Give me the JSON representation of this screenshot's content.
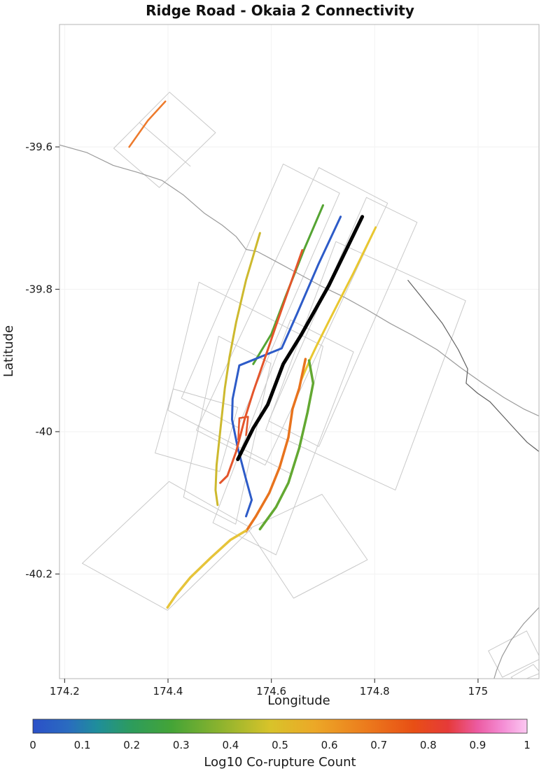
{
  "chart_data": {
    "type": "line",
    "title": "Ridge Road - Okaia 2 Connectivity",
    "xlabel": "Longitude",
    "ylabel": "Latitude",
    "xlim": [
      174.19,
      175.118
    ],
    "ylim": [
      -40.347,
      -39.428
    ],
    "grid": "off",
    "xticks": {
      "values": [
        174.2,
        174.4,
        174.6,
        174.8,
        175.0
      ],
      "labels": [
        "174.2",
        "174.4",
        "174.6",
        "174.8",
        "175"
      ]
    },
    "yticks": {
      "values": [
        -39.6,
        -39.8,
        -40.0,
        -40.2
      ],
      "labels": [
        "-39.6",
        "-39.8",
        "-40",
        "-40.2"
      ]
    },
    "colorbar": {
      "label": "Log10 Co-rupture Count",
      "min": 0,
      "max": 1,
      "tick_labels": [
        "0",
        "0.1",
        "0.2",
        "0.3",
        "0.4",
        "0.5",
        "0.6",
        "0.7",
        "0.8",
        "0.9",
        "1"
      ],
      "stops": [
        {
          "t": 0.0,
          "color": "#2b50c8"
        },
        {
          "t": 0.07,
          "color": "#2a6bc0"
        },
        {
          "t": 0.13,
          "color": "#1f8e9b"
        },
        {
          "t": 0.2,
          "color": "#2d9c5c"
        },
        {
          "t": 0.28,
          "color": "#44a437"
        },
        {
          "t": 0.38,
          "color": "#8db32e"
        },
        {
          "t": 0.48,
          "color": "#d8c32a"
        },
        {
          "t": 0.57,
          "color": "#eca827"
        },
        {
          "t": 0.67,
          "color": "#ec7d1d"
        },
        {
          "t": 0.77,
          "color": "#e84f15"
        },
        {
          "t": 0.84,
          "color": "#e63a39"
        },
        {
          "t": 0.9,
          "color": "#ec5ba2"
        },
        {
          "t": 0.95,
          "color": "#f48cd4"
        },
        {
          "t": 1.0,
          "color": "#fcc8f2"
        }
      ]
    },
    "traces": [
      {
        "name": "fault-trace-orange-northwest",
        "color": "#ed7a2c",
        "width": 2.5,
        "points": [
          [
            174.395,
            -39.536
          ],
          [
            174.361,
            -39.563
          ],
          [
            174.325,
            -39.6
          ]
        ]
      },
      {
        "name": "fault-trace-yellow-east",
        "color": "#e9c730",
        "width": 3,
        "points": [
          [
            174.802,
            -39.713
          ],
          [
            174.759,
            -39.777
          ],
          [
            174.714,
            -39.841
          ],
          [
            174.687,
            -39.88
          ],
          [
            174.676,
            -39.897
          ],
          [
            174.657,
            -39.929
          ]
        ]
      },
      {
        "name": "fault-trace-green-north",
        "color": "#55a433",
        "width": 3,
        "points": [
          [
            174.7,
            -39.682
          ],
          [
            174.664,
            -39.743
          ],
          [
            174.627,
            -39.811
          ],
          [
            174.6,
            -39.863
          ],
          [
            174.565,
            -39.905
          ]
        ]
      },
      {
        "name": "fault-trace-blue",
        "color": "#2d5bc8",
        "width": 3,
        "points": [
          [
            174.734,
            -39.698
          ],
          [
            174.691,
            -39.765
          ],
          [
            174.65,
            -39.834
          ],
          [
            174.62,
            -39.883
          ],
          [
            174.562,
            -39.9
          ],
          [
            174.538,
            -39.907
          ],
          [
            174.525,
            -39.954
          ],
          [
            174.524,
            -39.983
          ],
          [
            174.535,
            -40.023
          ],
          [
            174.551,
            -40.067
          ],
          [
            174.562,
            -40.096
          ],
          [
            174.551,
            -40.119
          ]
        ]
      },
      {
        "name": "fault-trace-red-central",
        "color": "#e4552b",
        "width": 3,
        "points": [
          [
            174.66,
            -39.745
          ],
          [
            174.633,
            -39.801
          ],
          [
            174.609,
            -39.851
          ],
          [
            174.586,
            -39.9
          ],
          [
            174.565,
            -39.944
          ],
          [
            174.548,
            -39.983
          ],
          [
            174.532,
            -40.028
          ],
          [
            174.515,
            -40.062
          ],
          [
            174.501,
            -40.072
          ]
        ]
      },
      {
        "name": "fault-trace-olive-west",
        "color": "#cdb92e",
        "width": 3,
        "points": [
          [
            174.578,
            -39.721
          ],
          [
            174.551,
            -39.787
          ],
          [
            174.532,
            -39.846
          ],
          [
            174.519,
            -39.895
          ],
          [
            174.51,
            -39.939
          ],
          [
            174.502,
            -39.993
          ],
          [
            174.494,
            -40.047
          ],
          [
            174.492,
            -40.082
          ],
          [
            174.496,
            -40.103
          ]
        ]
      },
      {
        "name": "fault-trace-red-short",
        "color": "#e4552b",
        "width": 2.5,
        "points": [
          [
            174.536,
            -40.011
          ],
          [
            174.538,
            -39.981
          ],
          [
            174.555,
            -39.979
          ],
          [
            174.551,
            -40.005
          ]
        ]
      },
      {
        "name": "fault-trace-green-south",
        "color": "#63a832",
        "width": 3.5,
        "points": [
          [
            174.673,
            -39.9
          ],
          [
            174.681,
            -39.932
          ],
          [
            174.67,
            -39.973
          ],
          [
            174.654,
            -40.023
          ],
          [
            174.633,
            -40.072
          ],
          [
            174.609,
            -40.106
          ],
          [
            174.586,
            -40.129
          ],
          [
            174.578,
            -40.137
          ]
        ]
      },
      {
        "name": "fault-trace-orange-south",
        "color": "#e8731d",
        "width": 3.5,
        "points": [
          [
            174.666,
            -39.898
          ],
          [
            174.654,
            -39.939
          ],
          [
            174.641,
            -39.968
          ],
          [
            174.633,
            -40.008
          ],
          [
            174.616,
            -40.05
          ],
          [
            174.596,
            -40.086
          ],
          [
            174.57,
            -40.119
          ],
          [
            174.551,
            -40.14
          ]
        ]
      },
      {
        "name": "fault-trace-gold-southwest",
        "color": "#e6c43a",
        "width": 3.5,
        "points": [
          [
            174.551,
            -40.139
          ],
          [
            174.521,
            -40.152
          ],
          [
            174.483,
            -40.177
          ],
          [
            174.443,
            -40.205
          ],
          [
            174.416,
            -40.229
          ],
          [
            174.399,
            -40.247
          ]
        ]
      },
      {
        "name": "source-fault-ridge-road-okaia-2",
        "color": "#000000",
        "width": 5,
        "points": [
          [
            174.776,
            -39.698
          ],
          [
            174.711,
            -39.795
          ],
          [
            174.657,
            -39.865
          ],
          [
            174.623,
            -39.905
          ],
          [
            174.593,
            -39.962
          ],
          [
            174.565,
            -39.995
          ],
          [
            174.535,
            -40.039
          ]
        ]
      }
    ],
    "section_outlines": [
      [
        [
          174.295,
          -39.602
        ],
        [
          174.403,
          -39.523
        ],
        [
          174.492,
          -39.58
        ],
        [
          174.383,
          -39.657
        ]
      ],
      [
        [
          174.345,
          -39.566
        ],
        [
          174.443,
          -39.627
        ]
      ],
      [
        [
          174.692,
          -39.629
        ],
        [
          174.825,
          -39.679
        ],
        [
          174.588,
          -40.047
        ],
        [
          174.455,
          -39.998
        ]
      ],
      [
        [
          174.623,
          -39.624
        ],
        [
          174.732,
          -39.665
        ],
        [
          174.535,
          -39.994
        ],
        [
          174.426,
          -39.953
        ]
      ],
      [
        [
          174.784,
          -39.671
        ],
        [
          174.882,
          -39.706
        ],
        [
          174.692,
          -40.021
        ],
        [
          174.595,
          -39.985
        ]
      ],
      [
        [
          174.637,
          -39.843
        ],
        [
          174.759,
          -39.888
        ],
        [
          174.609,
          -40.173
        ],
        [
          174.487,
          -40.128
        ]
      ],
      [
        [
          174.498,
          -39.866
        ],
        [
          174.599,
          -39.904
        ],
        [
          174.531,
          -40.13
        ],
        [
          174.43,
          -40.092
        ]
      ],
      [
        [
          174.725,
          -39.733
        ],
        [
          174.976,
          -39.816
        ],
        [
          174.84,
          -40.082
        ],
        [
          174.589,
          -39.998
        ]
      ],
      [
        [
          174.46,
          -39.79
        ],
        [
          174.7,
          -39.88
        ],
        [
          174.64,
          -40.06
        ],
        [
          174.4,
          -39.97
        ]
      ],
      [
        [
          174.375,
          -40.03
        ],
        [
          174.41,
          -39.94
        ],
        [
          174.535,
          -39.966
        ],
        [
          174.5,
          -40.056
        ]
      ],
      [
        [
          174.234,
          -40.185
        ],
        [
          174.402,
          -40.07
        ],
        [
          174.562,
          -40.136
        ],
        [
          174.399,
          -40.251
        ]
      ],
      [
        [
          174.555,
          -40.137
        ],
        [
          174.698,
          -40.088
        ],
        [
          174.786,
          -40.18
        ],
        [
          174.643,
          -40.234
        ]
      ],
      [
        [
          175.02,
          -40.308
        ],
        [
          175.094,
          -40.28
        ],
        [
          175.121,
          -40.319
        ],
        [
          175.047,
          -40.345
        ]
      ],
      [
        [
          175.064,
          -40.345
        ],
        [
          175.107,
          -40.327
        ],
        [
          175.121,
          -40.339
        ],
        [
          175.077,
          -40.352
        ]
      ]
    ],
    "coastlines": [
      {
        "name": "coastline-north",
        "color": "#9a9a9a",
        "width": 1.2,
        "points": [
          [
            174.189,
            -39.597
          ],
          [
            174.243,
            -39.608
          ],
          [
            174.294,
            -39.626
          ],
          [
            174.342,
            -39.636
          ],
          [
            174.388,
            -39.647
          ],
          [
            174.429,
            -39.667
          ],
          [
            174.47,
            -39.693
          ],
          [
            174.505,
            -39.71
          ],
          [
            174.532,
            -39.726
          ],
          [
            174.551,
            -39.744
          ],
          [
            174.573,
            -39.747
          ],
          [
            174.609,
            -39.761
          ],
          [
            174.65,
            -39.777
          ],
          [
            174.695,
            -39.795
          ],
          [
            174.741,
            -39.811
          ],
          [
            174.786,
            -39.829
          ],
          [
            174.83,
            -39.848
          ],
          [
            174.874,
            -39.865
          ],
          [
            174.921,
            -39.885
          ],
          [
            174.966,
            -39.91
          ],
          [
            175.009,
            -39.932
          ],
          [
            175.05,
            -39.952
          ],
          [
            175.088,
            -39.968
          ],
          [
            175.118,
            -39.978
          ]
        ]
      },
      {
        "name": "coastline-east-dark",
        "color": "#606060",
        "width": 1.2,
        "points": [
          [
            174.864,
            -39.787
          ],
          [
            174.894,
            -39.814
          ],
          [
            174.931,
            -39.848
          ],
          [
            174.962,
            -39.885
          ],
          [
            174.98,
            -39.912
          ],
          [
            174.977,
            -39.932
          ],
          [
            174.999,
            -39.946
          ],
          [
            175.023,
            -39.958
          ],
          [
            175.047,
            -39.977
          ],
          [
            175.072,
            -39.997
          ],
          [
            175.095,
            -40.015
          ],
          [
            175.118,
            -40.028
          ]
        ]
      },
      {
        "name": "coastline-southeast",
        "color": "#9a9a9a",
        "width": 1.2,
        "points": [
          [
            175.118,
            -40.247
          ],
          [
            175.088,
            -40.27
          ],
          [
            175.064,
            -40.293
          ],
          [
            175.047,
            -40.315
          ],
          [
            175.036,
            -40.335
          ],
          [
            175.031,
            -40.347
          ]
        ]
      }
    ]
  }
}
